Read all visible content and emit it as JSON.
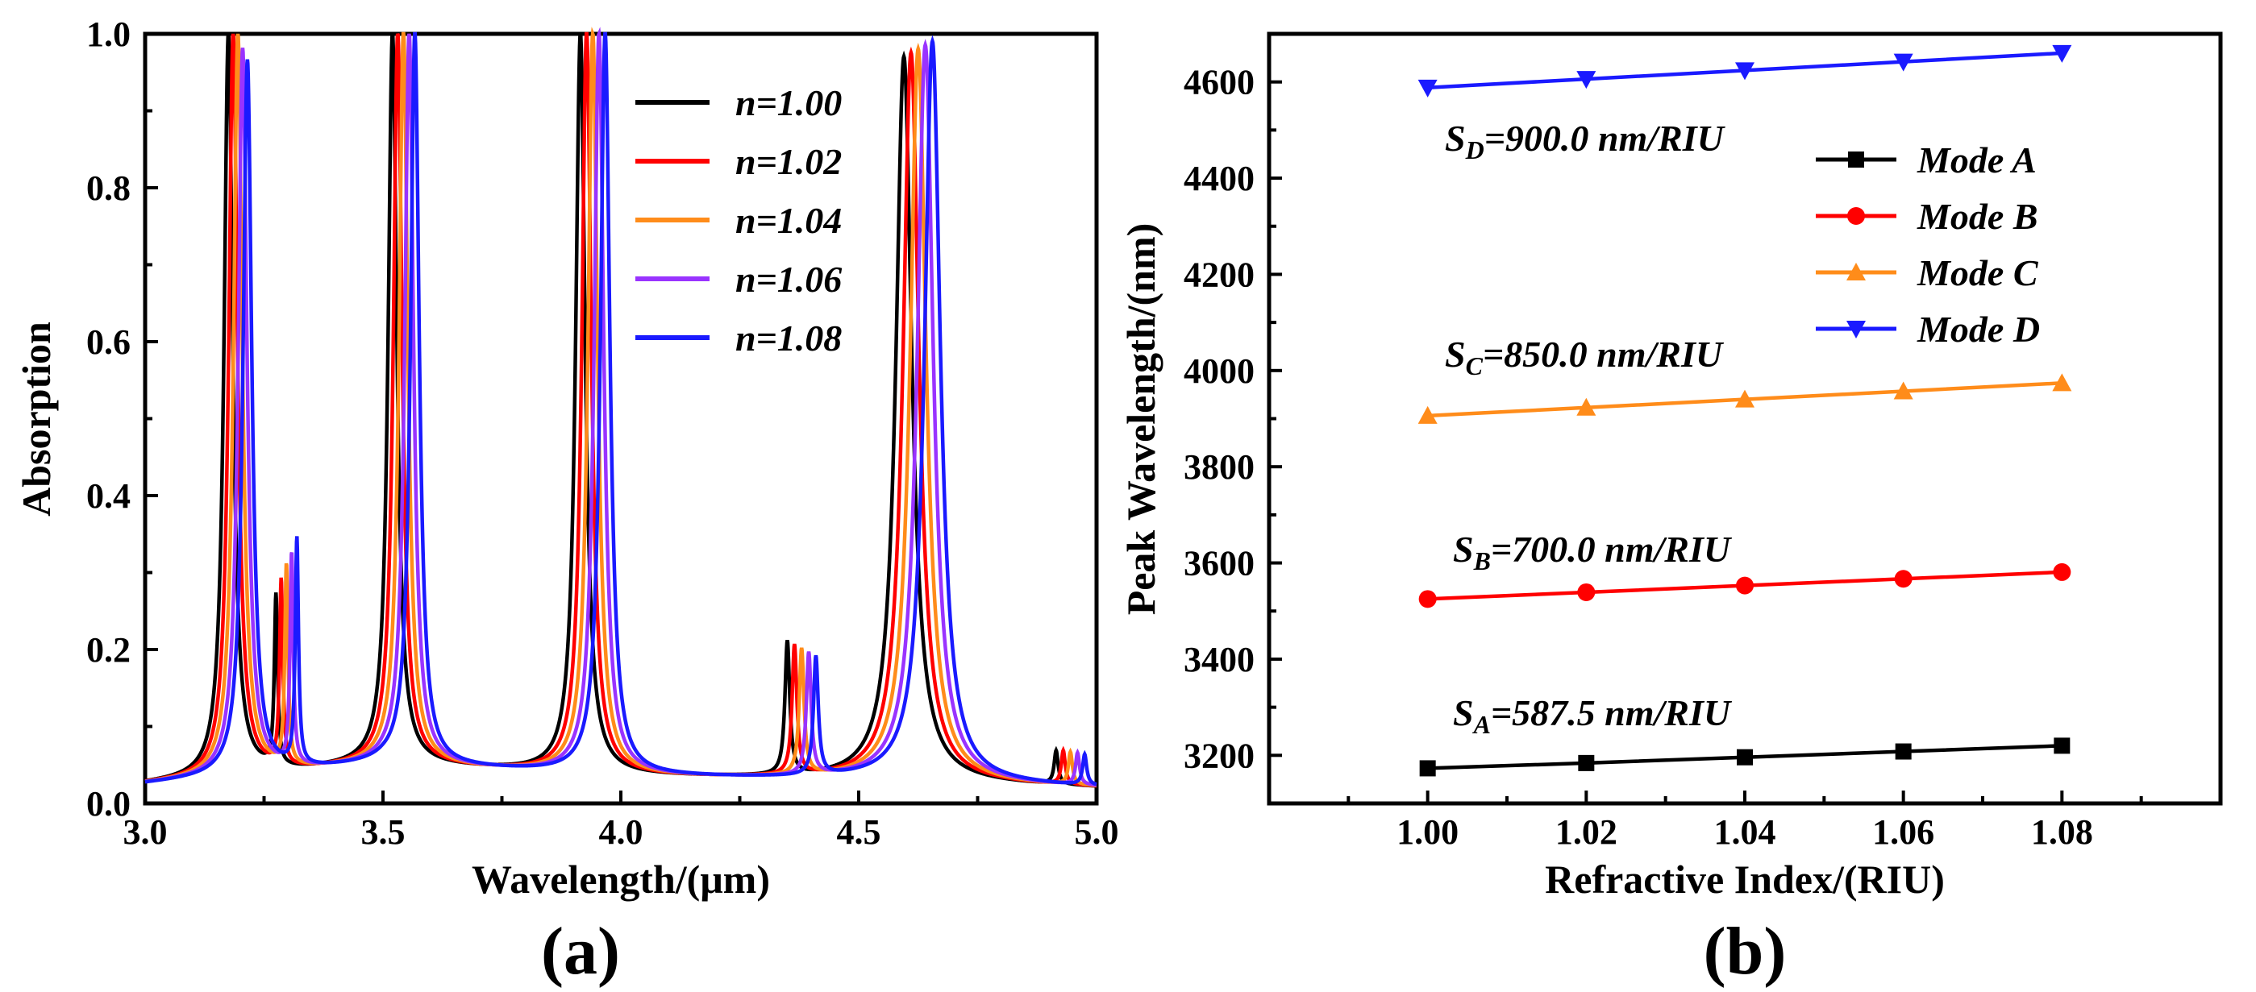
{
  "panels": [
    {
      "label": "(a)"
    },
    {
      "label": "(b)"
    }
  ],
  "chart_data": [
    {
      "type": "line",
      "panel": "(a)",
      "xlabel": "Wavelength/(μm)",
      "ylabel": "Absorption",
      "xlim": [
        3.0,
        5.0
      ],
      "ylim": [
        0.0,
        1.0
      ],
      "xticks": [
        "3.0",
        "3.5",
        "4.0",
        "4.5",
        "5.0"
      ],
      "yticks": [
        "0.0",
        "0.2",
        "0.4",
        "0.6",
        "0.8",
        "1.0"
      ],
      "grid": false,
      "legend_position": "top-right",
      "baseline": [
        [
          3.0,
          0.025
        ],
        [
          3.5,
          0.05
        ],
        [
          4.0,
          0.035
        ],
        [
          4.5,
          0.03
        ],
        [
          5.0,
          0.02
        ]
      ],
      "series": [
        {
          "name": "n=1.00",
          "color": "#000000",
          "peaks": [
            [
              3.175,
              1.0,
              0.011
            ],
            [
              3.275,
              0.26,
              0.004
            ],
            [
              3.52,
              1.0,
              0.011
            ],
            [
              3.915,
              1.0,
              0.012
            ],
            [
              4.35,
              0.205,
              0.006
            ],
            [
              4.595,
              0.97,
              0.02
            ],
            [
              4.915,
              0.065,
              0.005
            ]
          ]
        },
        {
          "name": "n=1.02",
          "color": "#ff0000",
          "peaks": [
            [
              3.185,
              1.0,
              0.011
            ],
            [
              3.286,
              0.28,
              0.004
            ],
            [
              3.531,
              1.0,
              0.011
            ],
            [
              3.928,
              1.0,
              0.012
            ],
            [
              4.365,
              0.2,
              0.006
            ],
            [
              4.61,
              0.975,
              0.02
            ],
            [
              4.93,
              0.065,
              0.005
            ]
          ]
        },
        {
          "name": "n=1.04",
          "color": "#ff8c1a",
          "peaks": [
            [
              3.195,
              1.0,
              0.011
            ],
            [
              3.297,
              0.3,
              0.004
            ],
            [
              3.543,
              1.0,
              0.011
            ],
            [
              3.941,
              1.0,
              0.012
            ],
            [
              4.38,
              0.195,
              0.006
            ],
            [
              4.625,
              0.98,
              0.02
            ],
            [
              4.945,
              0.063,
              0.005
            ]
          ]
        },
        {
          "name": "n=1.06",
          "color": "#9933ff",
          "peaks": [
            [
              3.205,
              0.98,
              0.011
            ],
            [
              3.308,
              0.315,
              0.004
            ],
            [
              3.555,
              1.0,
              0.011
            ],
            [
              3.954,
              1.0,
              0.012
            ],
            [
              4.395,
              0.19,
              0.006
            ],
            [
              4.64,
              0.985,
              0.02
            ],
            [
              4.96,
              0.062,
              0.005
            ]
          ]
        },
        {
          "name": "n=1.08",
          "color": "#1a1aff",
          "peaks": [
            [
              3.215,
              0.965,
              0.011
            ],
            [
              3.319,
              0.335,
              0.004
            ],
            [
              3.567,
              1.0,
              0.011
            ],
            [
              3.967,
              1.0,
              0.012
            ],
            [
              4.41,
              0.185,
              0.006
            ],
            [
              4.655,
              0.99,
              0.02
            ],
            [
              4.975,
              0.06,
              0.005
            ]
          ]
        }
      ]
    },
    {
      "type": "line",
      "panel": "(b)",
      "xlabel": "Refractive Index/(RIU)",
      "ylabel": "Peak Wavelength/(nm)",
      "xlim": [
        0.98,
        1.1
      ],
      "ylim": [
        3100,
        4700
      ],
      "xticks": [
        "1.00",
        "1.02",
        "1.04",
        "1.06",
        "1.08"
      ],
      "yticks": [
        "3200",
        "3400",
        "3600",
        "3800",
        "4000",
        "4200",
        "4400",
        "4600"
      ],
      "grid": false,
      "legend_position": "top-right",
      "x": [
        1.0,
        1.02,
        1.04,
        1.06,
        1.08
      ],
      "series": [
        {
          "name": "Mode A",
          "color": "#000000",
          "marker": "square",
          "values": [
            3173,
            3184,
            3196,
            3208,
            3220
          ]
        },
        {
          "name": "Mode B",
          "color": "#ff0000",
          "marker": "circle",
          "values": [
            3525,
            3539,
            3553,
            3567,
            3581
          ]
        },
        {
          "name": "Mode C",
          "color": "#ff8c1a",
          "marker": "triangle-up",
          "values": [
            3906,
            3923,
            3940,
            3957,
            3974
          ]
        },
        {
          "name": "Mode D",
          "color": "#1a1aff",
          "marker": "triangle-down",
          "values": [
            4588,
            4606,
            4624,
            4642,
            4660
          ]
        }
      ],
      "annotations": [
        {
          "main": "S",
          "sub": "D",
          "rest": "=900.0 nm/RIU"
        },
        {
          "main": "S",
          "sub": "C",
          "rest": "=850.0 nm/RIU"
        },
        {
          "main": "S",
          "sub": "B",
          "rest": "=700.0 nm/RIU"
        },
        {
          "main": "S",
          "sub": "A",
          "rest": "=587.5 nm/RIU"
        }
      ]
    }
  ]
}
